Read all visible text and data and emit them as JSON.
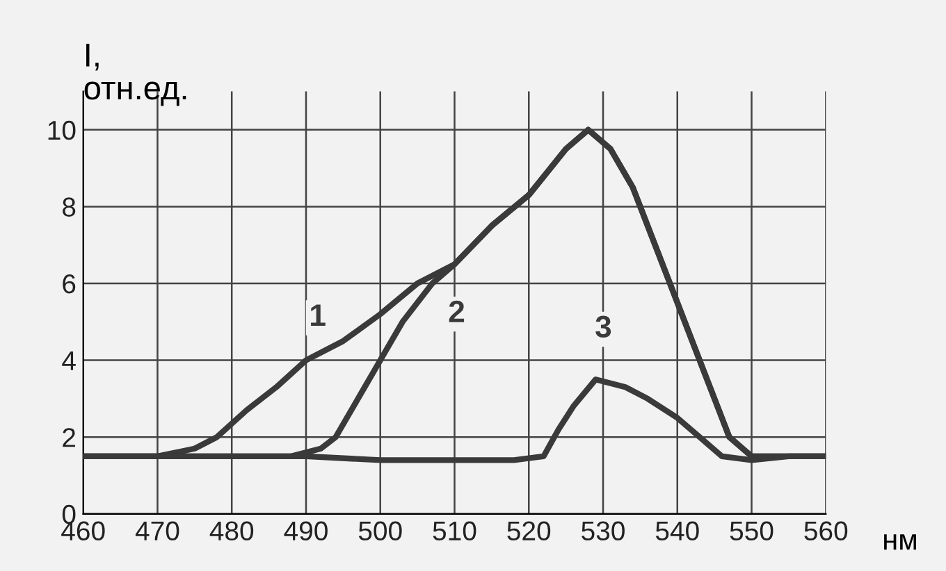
{
  "chart_data": {
    "type": "line",
    "xlabel": "нм",
    "ylabel": "I,\nотн.ед.",
    "xlim": [
      460,
      560
    ],
    "ylim": [
      0,
      11
    ],
    "xticks": [
      460,
      470,
      480,
      490,
      500,
      510,
      520,
      530,
      540,
      550,
      560
    ],
    "yticks": [
      0,
      2,
      4,
      6,
      8,
      10
    ],
    "grid": true,
    "marker": "none",
    "line_style": "solid",
    "series": [
      {
        "name": "1",
        "color": "#3a3a3a",
        "x": [
          460,
          465,
          470,
          475,
          478,
          482,
          486,
          490,
          495,
          500,
          505,
          510,
          515,
          520,
          525,
          528,
          531,
          534,
          538,
          541,
          544,
          547,
          550,
          555,
          560
        ],
        "values": [
          1.5,
          1.5,
          1.5,
          1.7,
          2.0,
          2.7,
          3.3,
          4.0,
          4.5,
          5.2,
          6.0,
          6.5,
          7.5,
          8.3,
          9.5,
          10.0,
          9.5,
          8.5,
          6.5,
          5.0,
          3.5,
          2.0,
          1.5,
          1.5,
          1.5
        ]
      },
      {
        "name": "2",
        "color": "#3a3a3a",
        "x": [
          460,
          470,
          480,
          488,
          492,
          494,
          497,
          500,
          503,
          507,
          510,
          515,
          520,
          525,
          528,
          531,
          534,
          538,
          541,
          544,
          547,
          550,
          555,
          560
        ],
        "values": [
          1.5,
          1.5,
          1.5,
          1.5,
          1.7,
          2.0,
          3.0,
          4.0,
          5.0,
          6.0,
          6.5,
          7.5,
          8.3,
          9.5,
          10.0,
          9.5,
          8.5,
          6.5,
          5.0,
          3.5,
          2.0,
          1.5,
          1.5,
          1.5
        ]
      },
      {
        "name": "3",
        "color": "#3a3a3a",
        "x": [
          460,
          470,
          480,
          490,
          500,
          510,
          518,
          522,
          524,
          526,
          529,
          533,
          536,
          540,
          543,
          546,
          550,
          555,
          560
        ],
        "values": [
          1.5,
          1.5,
          1.5,
          1.5,
          1.4,
          1.4,
          1.4,
          1.5,
          2.2,
          2.8,
          3.5,
          3.3,
          3.0,
          2.5,
          2.0,
          1.5,
          1.4,
          1.5,
          1.5
        ]
      }
    ]
  }
}
